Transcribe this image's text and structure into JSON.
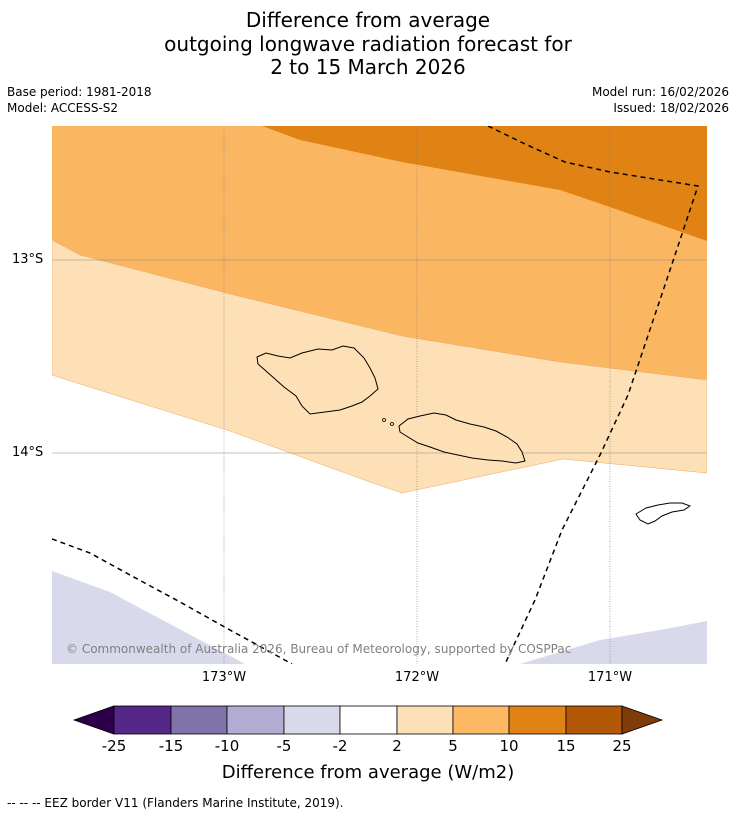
{
  "title": {
    "line1": "Difference from average",
    "line2": "outgoing longwave radiation forecast for",
    "line3": "2 to 15 March 2026"
  },
  "meta": {
    "base_period": "Base period: 1981-2018",
    "model": "Model: ACCESS-S2",
    "model_run": "Model run: 16/02/2026",
    "issued": "Issued: 18/02/2026"
  },
  "map": {
    "lat_labels": [
      "13°S",
      "14°S"
    ],
    "lon_labels": [
      "173°W",
      "172°W",
      "171°W"
    ],
    "copyright": "© Commonwealth of Australia 2026, Bureau of Meteorology, supported by COSPPac",
    "colors": {
      "band_5_10": "#fbb661",
      "band_10_15": "#e08214",
      "band_2_5": "#fee0b6",
      "band_neg5_neg2": "#d8daeb"
    }
  },
  "colorbar": {
    "ticks": [
      "-25",
      "-15",
      "-10",
      "-5",
      "-2",
      "2",
      "5",
      "10",
      "15",
      "25"
    ],
    "colors": [
      "#2d004b",
      "#542788",
      "#8073ac",
      "#b2abd2",
      "#d8daeb",
      "#ffffff",
      "#fee0b6",
      "#fdb863",
      "#e08214",
      "#b35806",
      "#7f3b08"
    ],
    "title": "Difference from average (W/m2)"
  },
  "footnote": "--  --  -- EEZ border V11 (Flanders Marine Institute, 2019)."
}
